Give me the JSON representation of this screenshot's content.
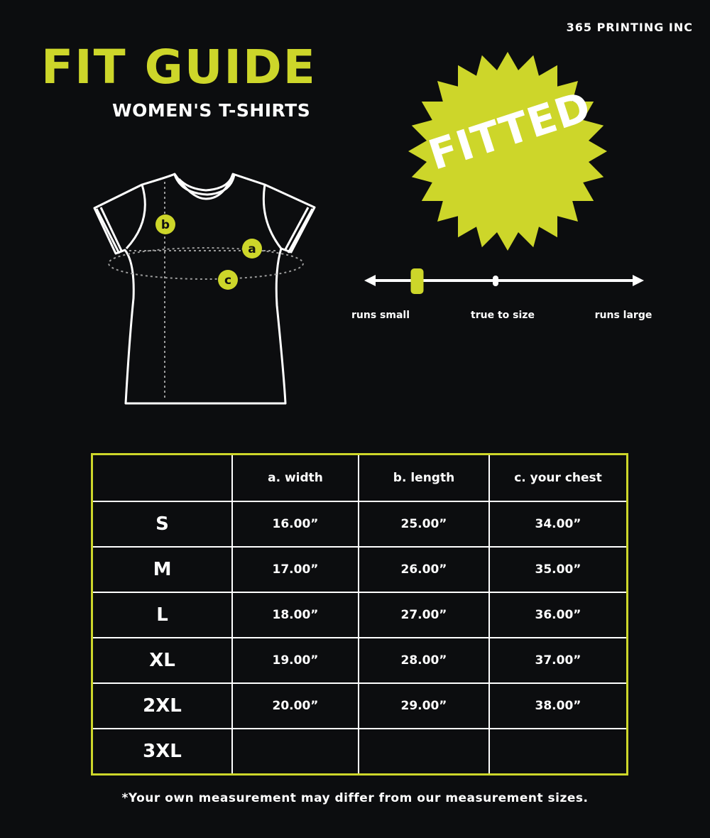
{
  "brand": "365 PRINTING INC",
  "title": "FIT GUIDE",
  "subtitle": "WOMEN'S T-SHIRTS",
  "badge": {
    "text": "FITTED",
    "color": "#cdd62a"
  },
  "diagram": {
    "labels": {
      "a": "a",
      "b": "b",
      "c": "c"
    }
  },
  "fit_scale": {
    "left_label": "runs small",
    "center_label": "true to size",
    "right_label": "runs large",
    "marker_position": 0.18
  },
  "colors": {
    "accent": "#cdd62a",
    "background": "#0c0d0f"
  },
  "table": {
    "headers": [
      "",
      "a. width",
      "b. length",
      "c. your chest"
    ],
    "rows": [
      {
        "size": "S",
        "width": "16.00”",
        "length": "25.00”",
        "chest": "34.00”"
      },
      {
        "size": "M",
        "width": "17.00”",
        "length": "26.00”",
        "chest": "35.00”"
      },
      {
        "size": "L",
        "width": "18.00”",
        "length": "27.00”",
        "chest": "36.00”"
      },
      {
        "size": "XL",
        "width": "19.00”",
        "length": "28.00”",
        "chest": "37.00”"
      },
      {
        "size": "2XL",
        "width": "20.00”",
        "length": "29.00”",
        "chest": "38.00”"
      },
      {
        "size": "3XL",
        "width": "",
        "length": "",
        "chest": ""
      }
    ]
  },
  "footnote": "*Your own measurement may differ from our measurement sizes."
}
